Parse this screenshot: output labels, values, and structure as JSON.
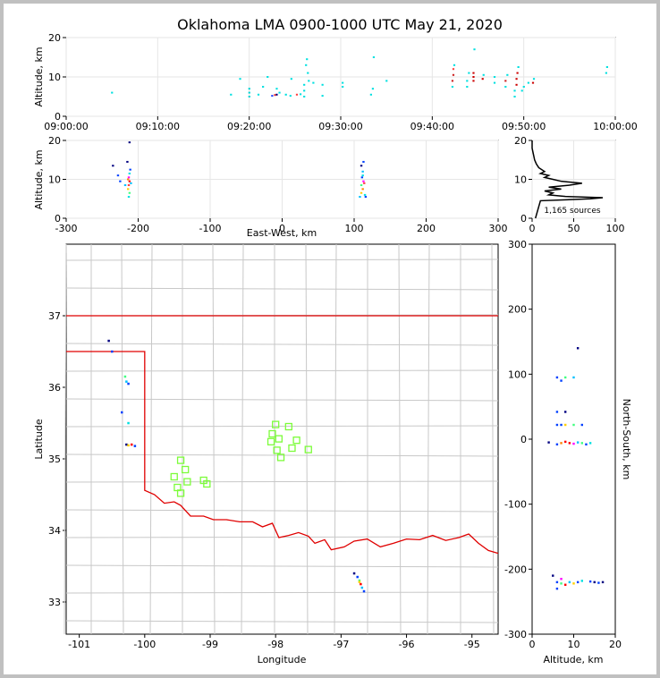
{
  "chart_data": {
    "title": "Oklahoma LMA 0900-1000 UTC May 21, 2020",
    "type": "scatter",
    "panels": {
      "time_altitude": {
        "type": "scatter",
        "ylabel": "Altitude, km",
        "xlim_minutes": [
          0,
          60
        ],
        "ylim": [
          0,
          20
        ],
        "xtick_labels": [
          "09:00:00",
          "09:10:00",
          "09:20:00",
          "09:30:00",
          "09:40:00",
          "09:50:00",
          "10:00:00"
        ],
        "yticks": [
          0,
          10,
          20
        ],
        "points": [
          [
            5,
            6,
            "#00e0e0"
          ],
          [
            18,
            5.5,
            "#00e0e0"
          ],
          [
            19,
            9.5,
            "#00e0e0"
          ],
          [
            20,
            5,
            "#00d4d4"
          ],
          [
            20,
            6,
            "#00d4d4"
          ],
          [
            20,
            7,
            "#00d4d4"
          ],
          [
            21,
            5.5,
            "#00e0e0"
          ],
          [
            21.5,
            7.5,
            "#00e0e0"
          ],
          [
            22,
            10,
            "#00e0e0"
          ],
          [
            22.5,
            5.2,
            "#2040ff"
          ],
          [
            22.8,
            5.4,
            "#ff3030"
          ],
          [
            23,
            5.5,
            "#000080"
          ],
          [
            23,
            7,
            "#00e0e0"
          ],
          [
            23.3,
            6,
            "#00e0e0"
          ],
          [
            24,
            5.5,
            "#00e0e0"
          ],
          [
            24.5,
            5.2,
            "#00e0e0"
          ],
          [
            24.6,
            9.5,
            "#00e0e0"
          ],
          [
            25.2,
            5.5,
            "#ff4040"
          ],
          [
            25.6,
            5.6,
            "#00e0e0"
          ],
          [
            26,
            5,
            "#00e0e0"
          ],
          [
            26,
            6.5,
            "#00e0e0"
          ],
          [
            26,
            8,
            "#00e0e0"
          ],
          [
            26.2,
            13,
            "#00e0e0"
          ],
          [
            26.3,
            14.5,
            "#00e0e0"
          ],
          [
            26.4,
            11,
            "#00e0e0"
          ],
          [
            26.5,
            9,
            "#00e0e0"
          ],
          [
            27,
            8.5,
            "#00e0e0"
          ],
          [
            28,
            5.2,
            "#00e0e0"
          ],
          [
            28,
            8,
            "#00e0e0"
          ],
          [
            30.2,
            7.5,
            "#00e0e0"
          ],
          [
            30.2,
            8.5,
            "#00e0e0"
          ],
          [
            33.3,
            5.5,
            "#00e0e0"
          ],
          [
            33.5,
            7,
            "#00e0e0"
          ],
          [
            33.6,
            15,
            "#00e0e0"
          ],
          [
            35,
            9,
            "#00e0e0"
          ],
          [
            42.2,
            7.5,
            "#00e0e0"
          ],
          [
            42.2,
            9,
            "#cc2020"
          ],
          [
            42.3,
            10.5,
            "#cc2020"
          ],
          [
            42.3,
            12,
            "#ff4040"
          ],
          [
            42.4,
            13,
            "#00e0e0"
          ],
          [
            43.8,
            7.5,
            "#00e0e0"
          ],
          [
            43.8,
            9,
            "#00e0e0"
          ],
          [
            44,
            11,
            "#00e0e0"
          ],
          [
            44.5,
            9,
            "#cc0000"
          ],
          [
            44.5,
            10,
            "#cc0000"
          ],
          [
            44.5,
            11,
            "#cc0000"
          ],
          [
            44.6,
            17,
            "#00e0e0"
          ],
          [
            45.5,
            9.5,
            "#cc0000"
          ],
          [
            45.6,
            10.5,
            "#00e0e0"
          ],
          [
            46.8,
            8.5,
            "#00e0e0"
          ],
          [
            46.8,
            10,
            "#00e0e0"
          ],
          [
            48,
            7.5,
            "#00e0e0"
          ],
          [
            48,
            9,
            "#cc2020"
          ],
          [
            48.2,
            10.5,
            "#00e0e0"
          ],
          [
            49,
            5,
            "#00e0e0"
          ],
          [
            49,
            6.5,
            "#00e0e0"
          ],
          [
            49.2,
            8,
            "#cc0000"
          ],
          [
            49.2,
            9.5,
            "#cc0000"
          ],
          [
            49.3,
            11,
            "#cc0000"
          ],
          [
            49.4,
            12.5,
            "#00e0e0"
          ],
          [
            49.8,
            6.5,
            "#00e0e0"
          ],
          [
            50,
            7.5,
            "#00e0e0"
          ],
          [
            50.5,
            8.5,
            "#00e0e0"
          ],
          [
            51,
            8.5,
            "#cc0000"
          ],
          [
            51.1,
            9.5,
            "#00e0e0"
          ],
          [
            59,
            11,
            "#00e0e0"
          ],
          [
            59.1,
            12.5,
            "#00e0e0"
          ]
        ]
      },
      "ew_altitude": {
        "type": "scatter",
        "xlabel": "East-West, km",
        "ylabel": "Altitude, km",
        "xlim": [
          -300,
          300
        ],
        "ylim": [
          0,
          20
        ],
        "xticks": [
          -300,
          -200,
          -100,
          0,
          100,
          200,
          300
        ],
        "yticks": [
          0,
          10,
          20
        ],
        "points": [
          [
            -235,
            13.5,
            "#000080"
          ],
          [
            -228,
            11,
            "#0040ff"
          ],
          [
            -225,
            9.5,
            "#0040ff"
          ],
          [
            -218,
            8.5,
            "#00c0ff"
          ],
          [
            -215,
            14.5,
            "#000080"
          ],
          [
            -213,
            5.5,
            "#00e0e0"
          ],
          [
            -212,
            6.5,
            "#40ff80"
          ],
          [
            -214,
            7.5,
            "#ffd000"
          ],
          [
            -213,
            8.5,
            "#ff4040"
          ],
          [
            -212,
            9.5,
            "#ff0000"
          ],
          [
            -213,
            10.5,
            "#ff00ff"
          ],
          [
            -212,
            11.5,
            "#00e0e0"
          ],
          [
            -211,
            12.5,
            "#0040ff"
          ],
          [
            -210,
            9,
            "#00c0ff"
          ],
          [
            -214,
            10,
            "#ff8000"
          ],
          [
            -212,
            19.5,
            "#000080"
          ],
          [
            108,
            5.5,
            "#00c0ff"
          ],
          [
            110,
            6.5,
            "#ffd000"
          ],
          [
            112,
            7.5,
            "#ff8000"
          ],
          [
            110,
            8.5,
            "#40ff80"
          ],
          [
            113,
            9.5,
            "#ff00ff"
          ],
          [
            111,
            10.5,
            "#0040ff"
          ],
          [
            112,
            12,
            "#00c0ff"
          ],
          [
            110,
            13.5,
            "#000080"
          ],
          [
            113,
            14.5,
            "#0040ff"
          ],
          [
            115,
            6,
            "#00e0e0"
          ],
          [
            114,
            9,
            "#ff4040"
          ],
          [
            112,
            11,
            "#00e0e0"
          ],
          [
            116,
            5.5,
            "#0040ff"
          ]
        ]
      },
      "histogram": {
        "type": "line",
        "xlim": [
          0,
          100
        ],
        "ylim": [
          0,
          20
        ],
        "xticks": [
          0,
          50,
          100
        ],
        "yticks": [
          0,
          10,
          20
        ],
        "annotation": "1,165 sources",
        "profile": [
          [
            4,
            0
          ],
          [
            10,
            4.5
          ],
          [
            70,
            5
          ],
          [
            85,
            5.3
          ],
          [
            40,
            5.6
          ],
          [
            20,
            6
          ],
          [
            25,
            6.5
          ],
          [
            15,
            7
          ],
          [
            35,
            7.5
          ],
          [
            20,
            8
          ],
          [
            45,
            8.5
          ],
          [
            60,
            9
          ],
          [
            35,
            9.5
          ],
          [
            25,
            10
          ],
          [
            15,
            10.5
          ],
          [
            20,
            11
          ],
          [
            10,
            11.5
          ],
          [
            15,
            12
          ],
          [
            8,
            13
          ],
          [
            5,
            14
          ],
          [
            3,
            15
          ],
          [
            2,
            16
          ],
          [
            1,
            17
          ],
          [
            0,
            18
          ],
          [
            0,
            20
          ]
        ]
      },
      "map": {
        "type": "scatter",
        "xlabel": "Longitude",
        "ylabel": "Latitude",
        "xlim": [
          -101.2,
          -94.6
        ],
        "ylim": [
          32.55,
          38
        ],
        "xticks": [
          -101,
          -100,
          -99,
          -98,
          -97,
          -96,
          -95
        ],
        "yticks": [
          33,
          34,
          35,
          36,
          37
        ],
        "points": [
          [
            -100.55,
            36.65,
            "#000080"
          ],
          [
            -100.5,
            36.5,
            "#0040ff"
          ],
          [
            -100.3,
            36.15,
            "#40ff80"
          ],
          [
            -100.28,
            36.08,
            "#00c0ff"
          ],
          [
            -100.25,
            36.05,
            "#0040ff"
          ],
          [
            -100.35,
            35.65,
            "#0040ff"
          ],
          [
            -100.25,
            35.5,
            "#00e0e0"
          ],
          [
            -100.28,
            35.2,
            "#000080"
          ],
          [
            -100.2,
            35.2,
            "#ff0000"
          ],
          [
            -100.15,
            35.18,
            "#0040ff"
          ],
          [
            -100.25,
            35.19,
            "#ffd000"
          ],
          [
            -96.8,
            33.4,
            "#000080"
          ],
          [
            -96.75,
            33.35,
            "#0040ff"
          ],
          [
            -96.72,
            33.3,
            "#40ff80"
          ],
          [
            -96.7,
            33.25,
            "#ff0000"
          ],
          [
            -96.68,
            33.2,
            "#00c0ff"
          ],
          [
            -96.65,
            33.15,
            "#0040ff"
          ],
          [
            -96.72,
            33.28,
            "#ffd000"
          ]
        ],
        "stations": [
          [
            -99.45,
            34.98
          ],
          [
            -99.38,
            34.85
          ],
          [
            -99.55,
            34.75
          ],
          [
            -99.35,
            34.68
          ],
          [
            -99.5,
            34.6
          ],
          [
            -99.45,
            34.52
          ],
          [
            -99.1,
            34.7
          ],
          [
            -99.05,
            34.65
          ],
          [
            -98.0,
            35.48
          ],
          [
            -98.05,
            35.35
          ],
          [
            -98.07,
            35.24
          ],
          [
            -97.95,
            35.28
          ],
          [
            -97.98,
            35.12
          ],
          [
            -97.92,
            35.02
          ],
          [
            -97.8,
            35.45
          ],
          [
            -97.75,
            35.15
          ],
          [
            -97.68,
            35.26
          ],
          [
            -97.5,
            35.13
          ]
        ]
      },
      "altitude_ns": {
        "type": "scatter",
        "xlabel": "Altitude, km",
        "ylabel": "North-South, km",
        "xlim": [
          0,
          20
        ],
        "ylim": [
          -300,
          300
        ],
        "xticks": [
          0,
          10,
          20
        ],
        "yticks": [
          -300,
          -200,
          -100,
          0,
          100,
          200,
          300
        ],
        "points": [
          [
            11,
            140,
            "#000080"
          ],
          [
            6,
            95,
            "#0040ff"
          ],
          [
            8,
            95,
            "#40ff80"
          ],
          [
            10,
            95,
            "#00c0ff"
          ],
          [
            7,
            90,
            "#0040ff"
          ],
          [
            6,
            42,
            "#0040ff"
          ],
          [
            8,
            42,
            "#000080"
          ],
          [
            6,
            22,
            "#0040ff"
          ],
          [
            7,
            22,
            "#0040ff"
          ],
          [
            8,
            22,
            "#ffd000"
          ],
          [
            10,
            22,
            "#40ff80"
          ],
          [
            12,
            22,
            "#0040ff"
          ],
          [
            4,
            -5,
            "#000080"
          ],
          [
            6,
            -8,
            "#0040ff"
          ],
          [
            7,
            -6,
            "#ff8000"
          ],
          [
            8,
            -4,
            "#ff0000"
          ],
          [
            9,
            -6,
            "#ff0000"
          ],
          [
            10,
            -7,
            "#ff00ff"
          ],
          [
            11,
            -5,
            "#00c0ff"
          ],
          [
            12,
            -6,
            "#40ff80"
          ],
          [
            13,
            -8,
            "#0040ff"
          ],
          [
            14,
            -6,
            "#00e0e0"
          ],
          [
            5,
            -210,
            "#000080"
          ],
          [
            6,
            -220,
            "#0040ff"
          ],
          [
            7,
            -222,
            "#40ff80"
          ],
          [
            8,
            -224,
            "#ff0000"
          ],
          [
            9,
            -220,
            "#00c0ff"
          ],
          [
            10,
            -222,
            "#ffd000"
          ],
          [
            11,
            -220,
            "#0040ff"
          ],
          [
            12,
            -218,
            "#00e0e0"
          ],
          [
            14,
            -219,
            "#0040ff"
          ],
          [
            15,
            -220,
            "#000080"
          ],
          [
            16,
            -221,
            "#0040ff"
          ],
          [
            17,
            -220,
            "#000080"
          ],
          [
            6,
            -230,
            "#0040ff"
          ],
          [
            7,
            -215,
            "#ff00ff"
          ]
        ]
      }
    }
  }
}
